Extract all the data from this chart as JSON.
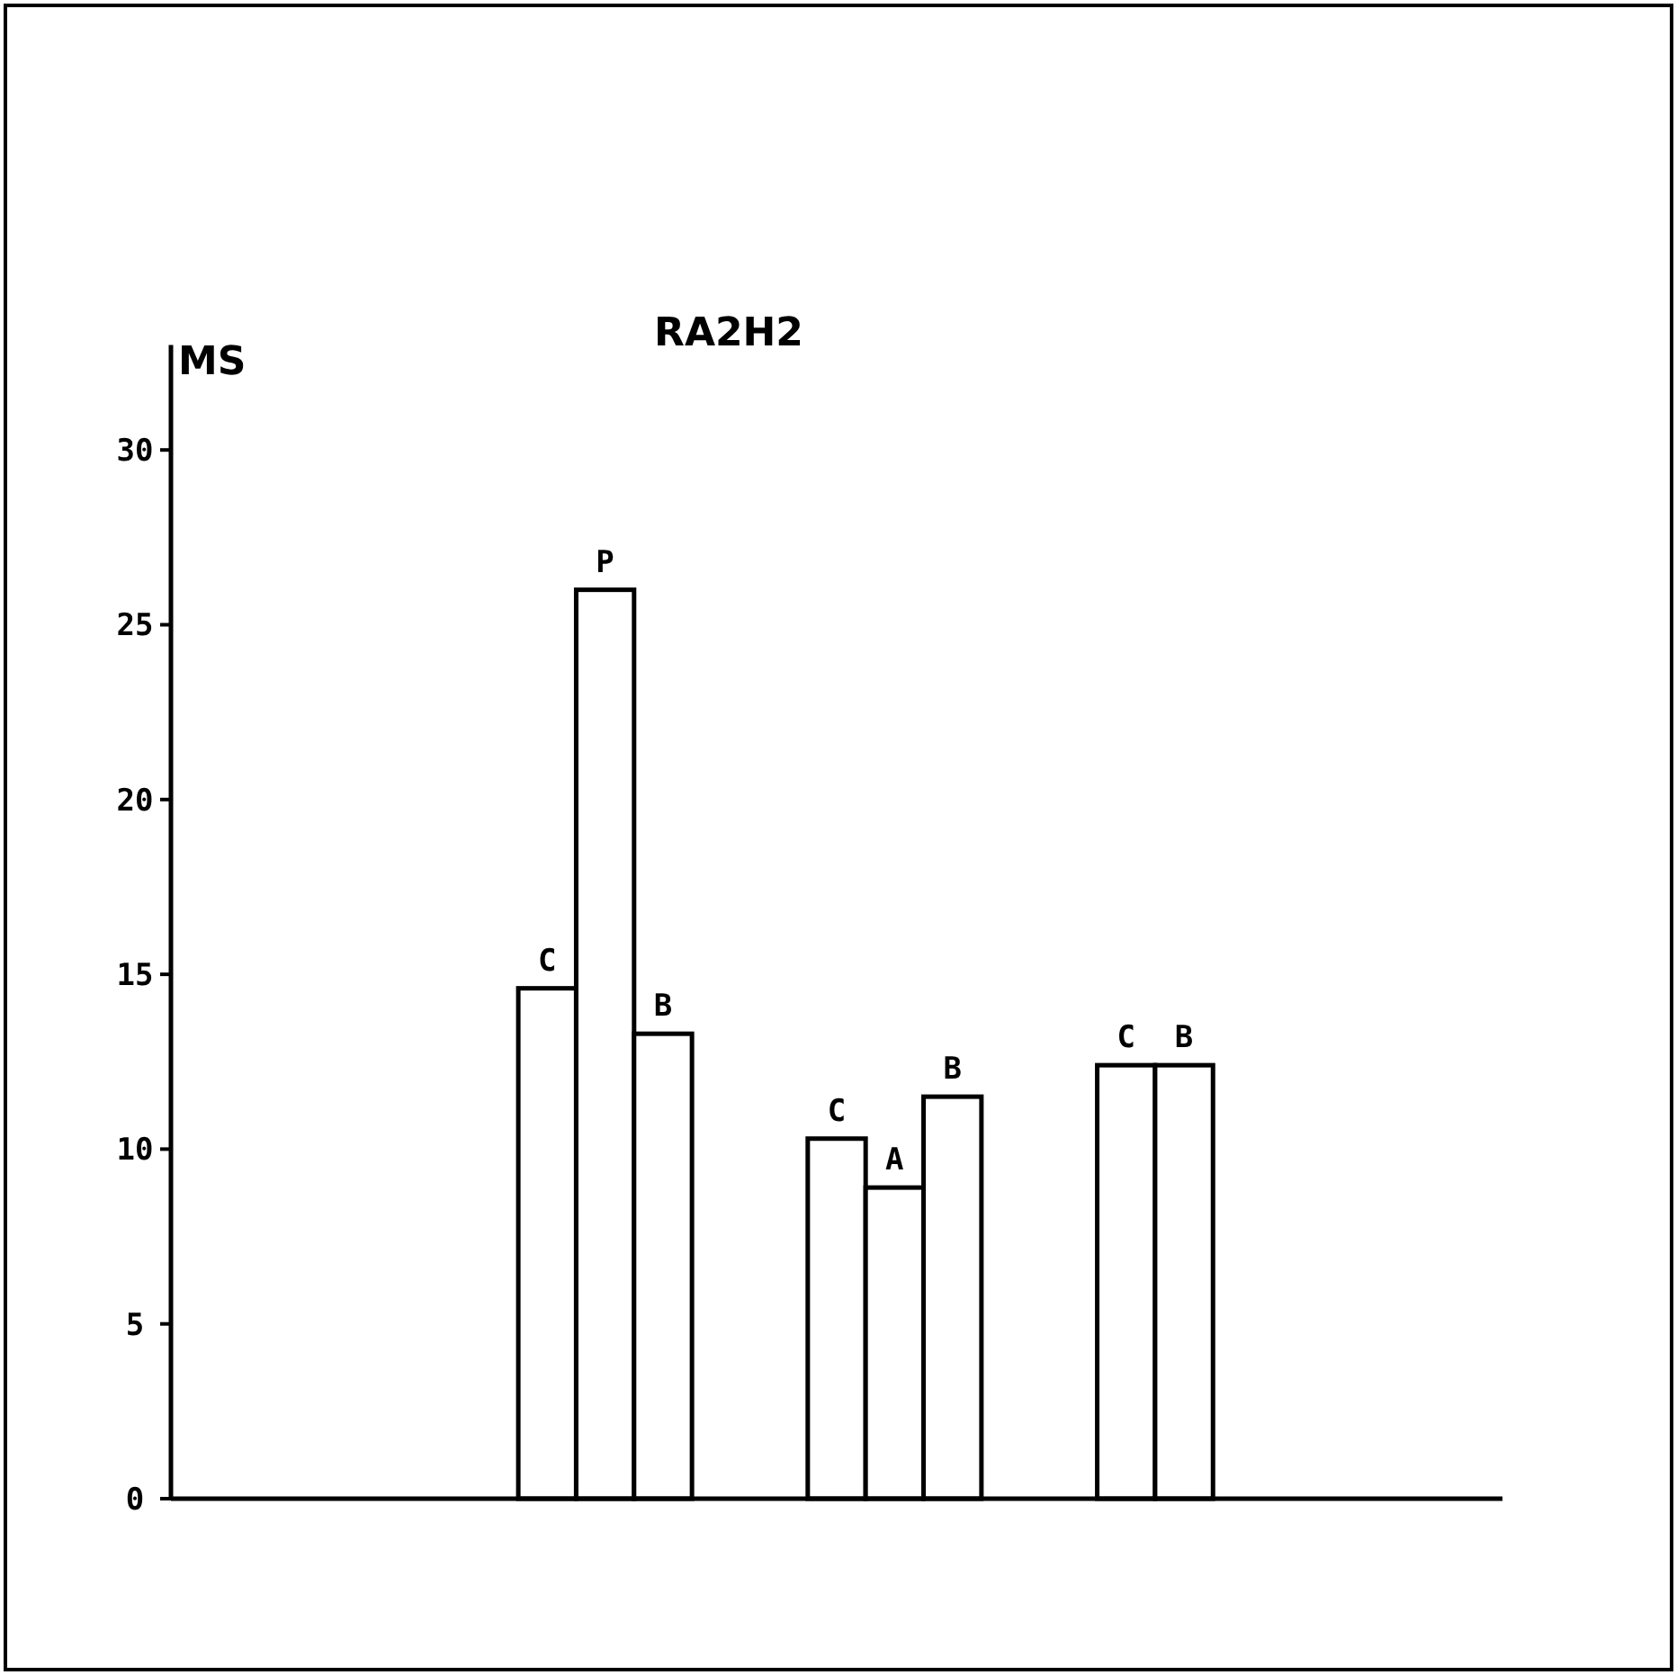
{
  "chart_data": {
    "type": "bar",
    "title": "RA2H2",
    "ylabel": "MS",
    "categories": [
      null,
      null,
      null,
      null,
      null,
      null,
      "C",
      "P",
      "B",
      null,
      null,
      "C",
      "A",
      "B",
      null,
      null,
      "C",
      "B",
      null,
      null,
      null,
      null,
      null
    ],
    "values": [
      null,
      null,
      null,
      null,
      null,
      null,
      14.6,
      26.0,
      13.3,
      null,
      null,
      10.3,
      8.9,
      11.5,
      null,
      null,
      12.4,
      12.4,
      null,
      null,
      null,
      null,
      null
    ],
    "color": "#ffffff",
    "ylim": [
      0,
      33
    ],
    "yticks": [
      0,
      5,
      10,
      15,
      20,
      25,
      30
    ],
    "grid": false
  }
}
